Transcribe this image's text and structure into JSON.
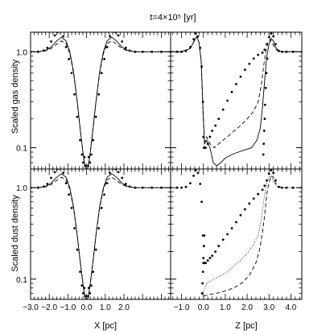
{
  "figure": {
    "title": "t=4×10⁵ [yr]"
  },
  "chart_data": [
    {
      "panel": "gas-x",
      "type": "line",
      "ylabel": "Scaled gas density",
      "xlabel": "",
      "yscale": "log",
      "ylim": [
        0.06,
        1.6
      ],
      "xlim": [
        -3.0,
        4.5
      ],
      "yticks": [
        "1.0",
        "0.1"
      ],
      "xticks": [],
      "series": [
        {
          "style": "dots",
          "x": [
            -3.0,
            -2.6,
            -2.3,
            -2.1,
            -1.9,
            -1.7,
            -1.55,
            -1.4,
            -1.25,
            -1.1,
            -0.95,
            -0.8,
            -0.65,
            -0.5,
            -0.35,
            -0.25,
            -0.18,
            -0.12,
            -0.08,
            0.08,
            0.12,
            0.18,
            0.25,
            0.35,
            0.5,
            0.65,
            0.8,
            0.95,
            1.1,
            1.25,
            1.4,
            1.55,
            1.7,
            1.9,
            2.1,
            2.3,
            2.6,
            3.0,
            3.5,
            4.0,
            4.5
          ],
          "y": [
            1.0,
            1.0,
            1.03,
            1.1,
            1.28,
            1.48,
            1.6,
            1.62,
            1.45,
            1.12,
            0.84,
            0.6,
            0.36,
            0.21,
            0.12,
            0.085,
            0.07,
            0.08,
            0.065,
            0.065,
            0.08,
            0.07,
            0.085,
            0.12,
            0.21,
            0.36,
            0.6,
            0.84,
            1.12,
            1.45,
            1.62,
            1.6,
            1.48,
            1.28,
            1.1,
            1.03,
            1.0,
            1.0,
            1.0,
            1.0,
            1.0
          ]
        },
        {
          "style": "solid",
          "x": [
            -3.0,
            -2.6,
            -2.2,
            -1.9,
            -1.6,
            -1.35,
            -1.1,
            -0.9,
            -0.7,
            -0.5,
            -0.35,
            -0.2,
            -0.12,
            -0.05,
            0.05,
            0.12,
            0.2,
            0.35,
            0.5,
            0.7,
            0.9,
            1.1,
            1.35,
            1.6,
            1.9,
            2.2,
            2.6,
            3.0,
            3.5,
            4.0,
            4.5
          ],
          "y": [
            1.0,
            1.0,
            1.03,
            1.12,
            1.3,
            1.42,
            1.3,
            1.0,
            0.62,
            0.3,
            0.16,
            0.09,
            0.07,
            0.06,
            0.06,
            0.07,
            0.09,
            0.16,
            0.3,
            0.62,
            1.0,
            1.3,
            1.42,
            1.3,
            1.12,
            1.03,
            1.0,
            1.0,
            1.0,
            1.0,
            1.0
          ]
        },
        {
          "style": "dashed",
          "x": [
            -3.0,
            -2.6,
            -2.2,
            -1.9,
            -1.6,
            -1.35,
            -1.1,
            -0.9,
            -0.7,
            -0.5,
            -0.35,
            -0.2,
            -0.12,
            -0.05,
            0.05,
            0.12,
            0.2,
            0.35,
            0.5,
            0.7,
            0.9,
            1.1,
            1.35,
            1.6,
            1.9,
            2.2,
            2.6,
            3.0,
            3.5,
            4.0,
            4.5
          ],
          "y": [
            1.0,
            1.0,
            1.02,
            1.08,
            1.2,
            1.3,
            1.22,
            0.96,
            0.6,
            0.3,
            0.16,
            0.09,
            0.07,
            0.06,
            0.06,
            0.07,
            0.09,
            0.16,
            0.3,
            0.6,
            0.96,
            1.22,
            1.3,
            1.2,
            1.08,
            1.02,
            1.0,
            1.0,
            1.0,
            1.0,
            1.0
          ]
        }
      ]
    },
    {
      "panel": "gas-z",
      "type": "line",
      "xlabel": "",
      "ylabel": "",
      "yscale": "log",
      "ylim": [
        0.06,
        1.6
      ],
      "xlim": [
        -1.5,
        4.5
      ],
      "xticks": [],
      "series": [
        {
          "style": "dots",
          "x": [
            -1.5,
            -1.2,
            -1.0,
            -0.8,
            -0.6,
            -0.45,
            -0.35,
            -0.25,
            -0.15,
            -0.08,
            -0.02,
            0.0,
            0.02,
            0.05,
            0.1,
            0.2,
            0.3,
            0.4,
            0.55,
            0.7,
            0.9,
            1.1,
            1.3,
            1.5,
            1.7,
            1.9,
            2.1,
            2.3,
            2.5,
            2.7,
            2.8,
            2.9,
            3.0,
            3.1,
            3.2,
            3.3,
            3.45,
            3.6,
            3.8,
            4.1,
            4.5
          ],
          "y": [
            1.0,
            1.0,
            1.0,
            1.02,
            1.12,
            1.35,
            1.55,
            1.45,
            1.1,
            0.7,
            0.3,
            0.13,
            0.1,
            0.1,
            0.1,
            0.11,
            0.13,
            0.15,
            0.17,
            0.2,
            0.25,
            0.31,
            0.38,
            0.46,
            0.55,
            0.65,
            0.75,
            0.85,
            0.93,
            0.98,
            1.05,
            1.2,
            1.42,
            1.55,
            1.45,
            1.2,
            1.02,
            1.0,
            1.0,
            1.0,
            1.0
          ]
        },
        {
          "style": "marks",
          "x": [
            2.74,
            2.76,
            2.78,
            2.8,
            2.82,
            2.85,
            2.88,
            2.92
          ],
          "y": [
            0.085,
            0.11,
            0.15,
            0.2,
            0.28,
            0.42,
            0.6,
            0.85
          ]
        },
        {
          "style": "solid",
          "x": [
            -1.5,
            -1.0,
            -0.6,
            -0.4,
            -0.3,
            -0.2,
            -0.1,
            -0.02,
            0.05,
            0.15,
            0.3,
            0.45,
            0.6,
            0.8,
            1.0,
            1.3,
            1.6,
            1.9,
            2.2,
            2.45,
            2.6,
            2.7,
            2.8,
            2.9,
            3.0,
            3.1,
            3.2,
            3.3,
            3.45,
            3.6,
            4.0,
            4.5
          ],
          "y": [
            1.0,
            1.0,
            1.08,
            1.32,
            1.45,
            1.25,
            0.8,
            0.25,
            0.11,
            0.12,
            0.1,
            0.07,
            0.065,
            0.07,
            0.078,
            0.085,
            0.09,
            0.095,
            0.1,
            0.12,
            0.16,
            0.26,
            0.5,
            0.9,
            1.2,
            1.38,
            1.3,
            1.12,
            1.02,
            1.0,
            1.0,
            1.0
          ]
        },
        {
          "style": "dashed",
          "x": [
            -1.5,
            -1.0,
            -0.6,
            -0.4,
            -0.3,
            -0.2,
            -0.1,
            -0.02,
            0.05,
            0.15,
            0.3,
            0.5,
            0.8,
            1.1,
            1.4,
            1.7,
            2.0,
            2.3,
            2.5,
            2.65,
            2.75,
            2.85,
            2.95,
            3.05,
            3.15,
            3.25,
            3.4,
            3.6,
            4.0,
            4.5
          ],
          "y": [
            1.0,
            1.0,
            1.08,
            1.32,
            1.45,
            1.25,
            0.8,
            0.25,
            0.11,
            0.13,
            0.11,
            0.1,
            0.115,
            0.13,
            0.15,
            0.17,
            0.2,
            0.24,
            0.3,
            0.45,
            0.7,
            1.0,
            1.25,
            1.35,
            1.25,
            1.1,
            1.02,
            1.0,
            1.0,
            1.0
          ]
        }
      ]
    },
    {
      "panel": "dust-x",
      "type": "line",
      "ylabel": "Scaled dust density",
      "xlabel": "X [pc]",
      "yscale": "log",
      "ylim": [
        0.06,
        1.6
      ],
      "xlim": [
        -3.0,
        4.5
      ],
      "yticks": [
        "1.0",
        "0.1"
      ],
      "xticks": [
        "−3.0",
        "−2.0",
        "−1.0",
        "0.0",
        "1.0",
        "2.0"
      ],
      "series": [
        {
          "style": "dots",
          "x": [
            -3.0,
            -2.6,
            -2.3,
            -2.1,
            -1.9,
            -1.7,
            -1.55,
            -1.4,
            -1.25,
            -1.1,
            -0.95,
            -0.8,
            -0.65,
            -0.5,
            -0.35,
            -0.25,
            -0.18,
            -0.12,
            -0.08,
            0.08,
            0.12,
            0.18,
            0.25,
            0.35,
            0.5,
            0.65,
            0.8,
            0.95,
            1.1,
            1.25,
            1.4,
            1.55,
            1.7,
            1.9,
            2.1,
            2.3,
            2.6,
            3.0,
            3.5,
            4.0,
            4.5
          ],
          "y": [
            1.0,
            1.0,
            1.03,
            1.1,
            1.28,
            1.48,
            1.6,
            1.62,
            1.45,
            1.12,
            0.84,
            0.6,
            0.36,
            0.21,
            0.12,
            0.085,
            0.07,
            0.08,
            0.065,
            0.065,
            0.08,
            0.07,
            0.085,
            0.12,
            0.21,
            0.36,
            0.6,
            0.84,
            1.12,
            1.45,
            1.62,
            1.6,
            1.48,
            1.28,
            1.1,
            1.03,
            1.0,
            1.0,
            1.0,
            1.0,
            1.0
          ]
        },
        {
          "style": "solid",
          "x": [
            -3.0,
            -2.6,
            -2.2,
            -1.9,
            -1.6,
            -1.35,
            -1.1,
            -0.9,
            -0.7,
            -0.5,
            -0.35,
            -0.2,
            -0.12,
            -0.05,
            0.05,
            0.12,
            0.2,
            0.35,
            0.5,
            0.7,
            0.9,
            1.1,
            1.35,
            1.6,
            1.9,
            2.2,
            2.6,
            3.0,
            3.5,
            4.0,
            4.5
          ],
          "y": [
            1.0,
            1.0,
            1.03,
            1.12,
            1.3,
            1.42,
            1.3,
            1.0,
            0.62,
            0.3,
            0.16,
            0.09,
            0.07,
            0.06,
            0.06,
            0.07,
            0.09,
            0.16,
            0.3,
            0.62,
            1.0,
            1.3,
            1.42,
            1.3,
            1.12,
            1.03,
            1.0,
            1.0,
            1.0,
            1.0,
            1.0
          ]
        },
        {
          "style": "dashed",
          "x": [
            -3.0,
            -2.6,
            -2.2,
            -1.9,
            -1.6,
            -1.35,
            -1.1,
            -0.9,
            -0.7,
            -0.5,
            -0.35,
            -0.2,
            -0.12,
            -0.05,
            0.05,
            0.12,
            0.2,
            0.35,
            0.5,
            0.7,
            0.9,
            1.1,
            1.35,
            1.6,
            1.9,
            2.2,
            2.6,
            3.0,
            3.5,
            4.0,
            4.5
          ],
          "y": [
            1.0,
            1.0,
            1.02,
            1.08,
            1.2,
            1.3,
            1.22,
            0.96,
            0.6,
            0.3,
            0.16,
            0.09,
            0.07,
            0.06,
            0.06,
            0.07,
            0.09,
            0.16,
            0.3,
            0.6,
            0.96,
            1.22,
            1.3,
            1.2,
            1.08,
            1.02,
            1.0,
            1.0,
            1.0,
            1.0,
            1.0
          ]
        }
      ]
    },
    {
      "panel": "dust-z",
      "type": "line",
      "xlabel": "Z [pc]",
      "ylabel": "",
      "yscale": "log",
      "ylim": [
        0.06,
        1.6
      ],
      "xlim": [
        -1.5,
        4.5
      ],
      "xticks": [
        "−1.0",
        "0.0",
        "1.0",
        "2.0",
        "3.0",
        "4.0"
      ],
      "series": [
        {
          "style": "dots",
          "x": [
            -1.5,
            -1.2,
            -1.0,
            -0.8,
            -0.6,
            -0.45,
            -0.35,
            -0.25,
            -0.15,
            -0.08,
            -0.02,
            0.0,
            0.02,
            0.05,
            0.1,
            0.2,
            0.3,
            0.4,
            0.55,
            0.7,
            0.9,
            1.1,
            1.3,
            1.5,
            1.7,
            1.9,
            2.1,
            2.3,
            2.5,
            2.7,
            2.8,
            2.9,
            3.0,
            3.1,
            3.2,
            3.3,
            3.45,
            3.6,
            3.8,
            4.1,
            4.5
          ],
          "y": [
            1.0,
            1.0,
            1.0,
            1.02,
            1.12,
            1.35,
            1.55,
            1.45,
            1.1,
            0.7,
            0.3,
            0.15,
            0.15,
            0.15,
            0.15,
            0.16,
            0.17,
            0.18,
            0.2,
            0.23,
            0.27,
            0.31,
            0.36,
            0.42,
            0.5,
            0.58,
            0.67,
            0.76,
            0.85,
            0.95,
            1.05,
            1.2,
            1.42,
            1.55,
            1.45,
            1.2,
            1.02,
            1.0,
            1.0,
            1.0,
            1.0
          ]
        },
        {
          "style": "marks",
          "x": [
            -0.06,
            -0.04,
            -0.02,
            0.0,
            0.02,
            0.04
          ],
          "y": [
            0.07,
            0.09,
            0.12,
            0.17,
            0.23,
            0.3
          ]
        },
        {
          "style": "dotted",
          "x": [
            0.0,
            0.05,
            0.15,
            0.3,
            0.5,
            0.8,
            1.1,
            1.4,
            1.7,
            2.0,
            2.3,
            2.5,
            2.65,
            2.75,
            2.85,
            2.95,
            3.05,
            3.15,
            3.25,
            3.4,
            3.6,
            4.0,
            4.5
          ],
          "y": [
            0.07,
            0.08,
            0.09,
            0.095,
            0.1,
            0.11,
            0.12,
            0.14,
            0.16,
            0.19,
            0.24,
            0.3,
            0.45,
            0.7,
            1.0,
            1.25,
            1.35,
            1.25,
            1.1,
            1.02,
            1.0,
            1.0,
            1.0
          ]
        },
        {
          "style": "dashed",
          "x": [
            0.0,
            0.1,
            0.3,
            0.6,
            0.9,
            1.2,
            1.5,
            1.8,
            2.1,
            2.4,
            2.55,
            2.7,
            2.8,
            2.9,
            3.0,
            3.1,
            3.2,
            3.3,
            3.45,
            3.6,
            4.0,
            4.5
          ],
          "y": [
            0.065,
            0.066,
            0.068,
            0.07,
            0.073,
            0.077,
            0.083,
            0.092,
            0.11,
            0.15,
            0.2,
            0.32,
            0.5,
            0.85,
            1.15,
            1.35,
            1.3,
            1.12,
            1.02,
            1.0,
            1.0,
            1.0
          ]
        }
      ]
    }
  ]
}
